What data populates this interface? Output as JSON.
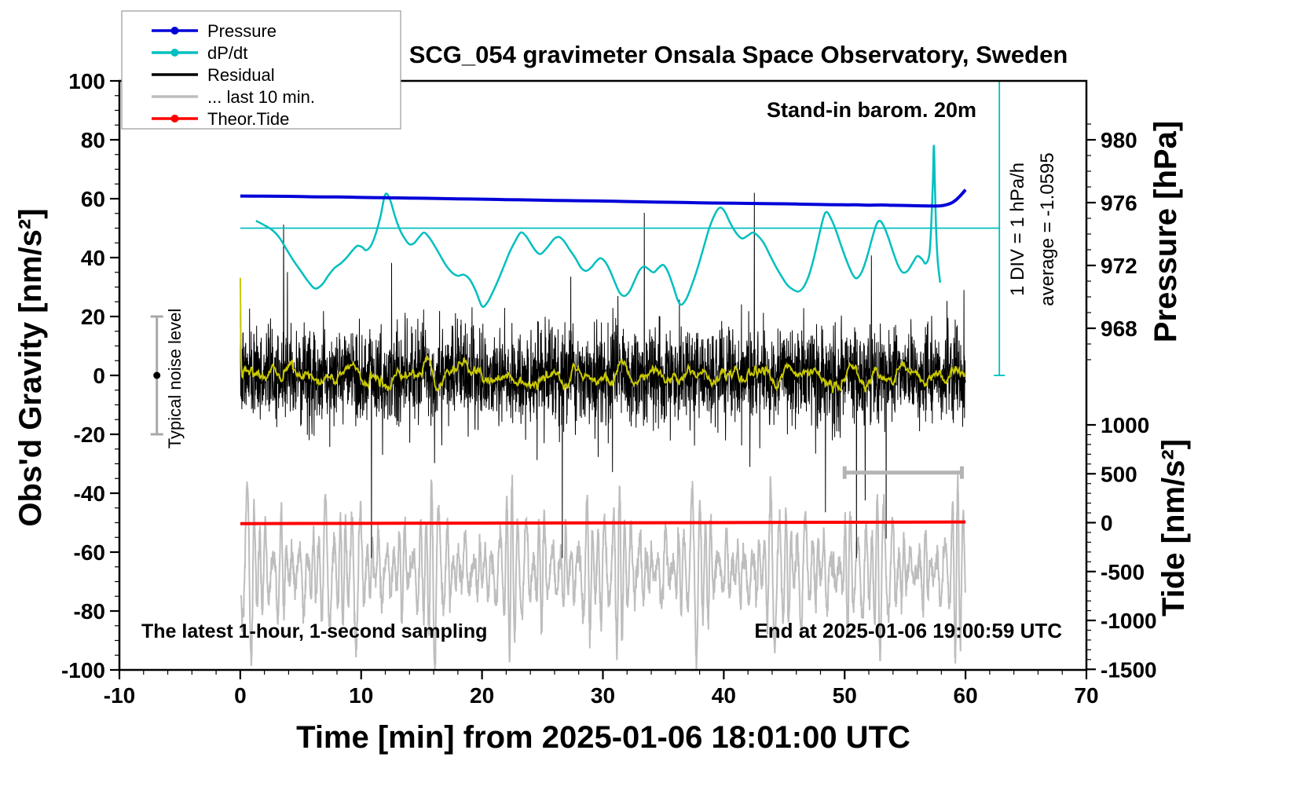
{
  "title": "SCG_054 gravimeter Onsala Space Observatory, Sweden",
  "axis": {
    "x_label": "Time [min] from 2025-01-06 18:01:00 UTC",
    "left_label": "Obs'd Gravity [nm/s²]",
    "pressure_label": "Pressure [hPa]",
    "tide_label": "Tide [nm/s²]"
  },
  "annotations": {
    "barometer": "Stand-in barom. 20m",
    "div_scale": "1 DIV = 1 hPa/h",
    "average": "average = -1.0595",
    "noise_level": "Typical noise level",
    "sampling": "The latest 1-hour, 1-second sampling",
    "end_time": "End at 2025-01-06 19:00:59 UTC"
  },
  "legend": {
    "items": [
      {
        "label": "Pressure",
        "color": "#0000d8",
        "marker": "dot"
      },
      {
        "label": "dP/dt",
        "color": "#00bfbf",
        "marker": "dot"
      },
      {
        "label": "Residual",
        "color": "#000000",
        "marker": "line"
      },
      {
        "label": "... last 10 min.",
        "color": "#bdbdbd",
        "marker": "line"
      },
      {
        "label": "Theor.Tide",
        "color": "#ff0000",
        "marker": "dot"
      }
    ]
  },
  "chart_data": {
    "type": "line",
    "x_range": [
      -10,
      70
    ],
    "gravity_range": [
      -100,
      100
    ],
    "x_ticks": [
      -10,
      0,
      10,
      20,
      30,
      40,
      50,
      60,
      70
    ],
    "x_minor_step": 2,
    "gravity_ticks": [
      -100,
      -80,
      -60,
      -40,
      -20,
      0,
      20,
      40,
      60,
      80,
      100
    ],
    "gravity_minor_step": 5,
    "pressure_ticks": [
      968,
      972,
      976,
      980
    ],
    "pressure_minor_step": 1,
    "pressure_minor_range": [
      966,
      981
    ],
    "tide_ticks": [
      -1500,
      -1000,
      -500,
      0,
      500,
      1000
    ],
    "tide_minor_step": 100,
    "pressure_map": {
      "gravity_at_980": 80,
      "gravity_units_per_hpa": 5.333
    },
    "tide_map": {
      "gravity_at_0": -50,
      "gravity_units_per_1000": 33.2
    },
    "series": {
      "pressure": {
        "axis": "pressure",
        "color": "#0000d8",
        "width": 4,
        "points": [
          [
            0,
            976.42
          ],
          [
            2,
            976.41
          ],
          [
            4,
            976.4
          ],
          [
            6,
            976.37
          ],
          [
            8,
            976.36
          ],
          [
            10,
            976.33
          ],
          [
            12,
            976.31
          ],
          [
            14,
            976.29
          ],
          [
            16,
            976.27
          ],
          [
            18,
            976.24
          ],
          [
            20,
            976.22
          ],
          [
            22,
            976.19
          ],
          [
            24,
            976.17
          ],
          [
            26,
            976.14
          ],
          [
            28,
            976.12
          ],
          [
            30,
            976.1
          ],
          [
            32,
            976.07
          ],
          [
            34,
            976.04
          ],
          [
            36,
            976.02
          ],
          [
            38,
            975.99
          ],
          [
            40,
            975.97
          ],
          [
            42,
            975.95
          ],
          [
            44,
            975.93
          ],
          [
            46,
            975.91
          ],
          [
            48,
            975.88
          ],
          [
            50,
            975.86
          ],
          [
            51,
            975.86
          ],
          [
            52,
            975.84
          ],
          [
            53,
            975.85
          ],
          [
            54,
            975.83
          ],
          [
            55,
            975.82
          ],
          [
            56,
            975.8
          ],
          [
            57,
            975.79
          ],
          [
            57.5,
            975.78
          ],
          [
            58,
            975.8
          ],
          [
            58.5,
            975.88
          ],
          [
            59,
            976.05
          ],
          [
            59.5,
            976.38
          ],
          [
            60,
            976.82
          ]
        ]
      },
      "dpdt": {
        "axis": "gravity",
        "color": "#00bfbf",
        "width": 2.5,
        "zero_gravity": 50,
        "points": [
          [
            1.3,
            52.5
          ],
          [
            2,
            51
          ],
          [
            2.6,
            49.5
          ],
          [
            3.2,
            47
          ],
          [
            3.8,
            43
          ],
          [
            4.4,
            39
          ],
          [
            5,
            35.5
          ],
          [
            5.6,
            32
          ],
          [
            6.2,
            29.5
          ],
          [
            6.8,
            31
          ],
          [
            7.3,
            34
          ],
          [
            7.8,
            36.5
          ],
          [
            8.3,
            38
          ],
          [
            8.8,
            40
          ],
          [
            9.3,
            42.5
          ],
          [
            9.7,
            44
          ],
          [
            10.1,
            43.5
          ],
          [
            10.4,
            42.5
          ],
          [
            10.8,
            44
          ],
          [
            11.2,
            48
          ],
          [
            11.6,
            54
          ],
          [
            12,
            61.5
          ],
          [
            12.4,
            59.5
          ],
          [
            12.8,
            54
          ],
          [
            13.2,
            49.5
          ],
          [
            13.6,
            46.5
          ],
          [
            14,
            44.5
          ],
          [
            14.4,
            45
          ],
          [
            14.8,
            47
          ],
          [
            15.2,
            48.5
          ],
          [
            15.6,
            47
          ],
          [
            16,
            44.5
          ],
          [
            16.5,
            41
          ],
          [
            17,
            37.5
          ],
          [
            17.5,
            35
          ],
          [
            18,
            33.8
          ],
          [
            18.5,
            34.2
          ],
          [
            19,
            32.5
          ],
          [
            19.5,
            28.5
          ],
          [
            20,
            23.5
          ],
          [
            20.4,
            24.5
          ],
          [
            20.8,
            27.5
          ],
          [
            21.3,
            32
          ],
          [
            21.8,
            37
          ],
          [
            22.3,
            42
          ],
          [
            22.8,
            46
          ],
          [
            23.2,
            48.5
          ],
          [
            23.6,
            47.5
          ],
          [
            24,
            45
          ],
          [
            24.4,
            42.5
          ],
          [
            24.8,
            41.2
          ],
          [
            25.2,
            42.5
          ],
          [
            25.6,
            44.5
          ],
          [
            26,
            46.5
          ],
          [
            26.4,
            47
          ],
          [
            26.8,
            45.5
          ],
          [
            27.2,
            43
          ],
          [
            27.7,
            40
          ],
          [
            28.2,
            36.5
          ],
          [
            28.6,
            35.5
          ],
          [
            29,
            36.5
          ],
          [
            29.4,
            38.5
          ],
          [
            29.8,
            39.8
          ],
          [
            30.2,
            38.5
          ],
          [
            30.6,
            35.5
          ],
          [
            31,
            31.5
          ],
          [
            31.4,
            28
          ],
          [
            31.8,
            27
          ],
          [
            32.2,
            28.5
          ],
          [
            32.6,
            32
          ],
          [
            33,
            35.5
          ],
          [
            33.4,
            37
          ],
          [
            33.8,
            36
          ],
          [
            34.2,
            35
          ],
          [
            34.6,
            36.5
          ],
          [
            35,
            37.5
          ],
          [
            35.4,
            35
          ],
          [
            35.8,
            30.5
          ],
          [
            36.2,
            25.5
          ],
          [
            36.5,
            24
          ],
          [
            36.9,
            26
          ],
          [
            37.3,
            30
          ],
          [
            37.8,
            36
          ],
          [
            38.3,
            43
          ],
          [
            38.8,
            50
          ],
          [
            39.3,
            55
          ],
          [
            39.7,
            57
          ],
          [
            40.1,
            55.5
          ],
          [
            40.5,
            52
          ],
          [
            41,
            48.5
          ],
          [
            41.5,
            46.5
          ],
          [
            42,
            47.5
          ],
          [
            42.4,
            48.5
          ],
          [
            42.8,
            47.5
          ],
          [
            43.3,
            45
          ],
          [
            43.8,
            41
          ],
          [
            44.3,
            37
          ],
          [
            44.8,
            33.5
          ],
          [
            45.3,
            30.5
          ],
          [
            45.8,
            29
          ],
          [
            46.2,
            28.5
          ],
          [
            46.6,
            30
          ],
          [
            47,
            33.5
          ],
          [
            47.4,
            39
          ],
          [
            47.8,
            46
          ],
          [
            48.2,
            53
          ],
          [
            48.5,
            55.5
          ],
          [
            48.9,
            53
          ],
          [
            49.3,
            49
          ],
          [
            49.8,
            43
          ],
          [
            50.3,
            37.5
          ],
          [
            50.7,
            34
          ],
          [
            51,
            33
          ],
          [
            51.4,
            35
          ],
          [
            51.8,
            39.5
          ],
          [
            52.2,
            45.5
          ],
          [
            52.6,
            51
          ],
          [
            52.9,
            52.5
          ],
          [
            53.2,
            51
          ],
          [
            53.6,
            47
          ],
          [
            54,
            42
          ],
          [
            54.4,
            37.5
          ],
          [
            54.8,
            35
          ],
          [
            55.2,
            35.5
          ],
          [
            55.6,
            38
          ],
          [
            56,
            40.5
          ],
          [
            56.4,
            39.5
          ],
          [
            56.7,
            38
          ],
          [
            57,
            41
          ],
          [
            57.15,
            50
          ],
          [
            57.3,
            66
          ],
          [
            57.38,
            78
          ],
          [
            57.46,
            66
          ],
          [
            57.56,
            50
          ],
          [
            57.7,
            39
          ],
          [
            57.9,
            31.5
          ]
        ]
      },
      "theor_tide": {
        "axis": "tide",
        "color": "#ff0000",
        "width": 4,
        "points": [
          [
            0,
            -10
          ],
          [
            10,
            -7
          ],
          [
            20,
            -5
          ],
          [
            30,
            -2
          ],
          [
            40,
            1
          ],
          [
            50,
            4
          ],
          [
            60,
            7
          ]
        ]
      },
      "residual": {
        "axis": "gravity",
        "color": "#000000",
        "width": 1,
        "generator": {
          "seed": 7,
          "points": 3600,
          "x_range": [
            0,
            60
          ],
          "std": 7.5,
          "spike_prob": 0.018,
          "spike_min": 1.8,
          "spike_max": 4.2,
          "clamp": 62
        }
      },
      "residual_smooth": {
        "axis": "gravity",
        "color": "#c8c800",
        "width": 2,
        "window": 45,
        "gain": 1.6
      },
      "last_10_min": {
        "axis": "gravity",
        "color": "#bdbdbd",
        "width": 2,
        "generator": {
          "seed": 23,
          "points": 3000,
          "x_range": [
            0.05,
            60
          ],
          "center": -66,
          "carrier_period": 0.55,
          "base_amp": 9,
          "mod_amps": [
            9,
            7,
            6
          ],
          "mod_periods": [
            7.3,
            3.1,
            1.27
          ],
          "jitter": 2,
          "clamp": [
            -100,
            -29
          ]
        }
      }
    },
    "markers": {
      "noise_errorbar": {
        "x": -6.9,
        "gravity_from": -20,
        "gravity_to": 20,
        "dot_gravity": 0
      },
      "scale_bar": {
        "gravity": -33,
        "x_from": 50,
        "x_to": 59.7
      },
      "dpdt_axis_bar": {
        "x": 62.8,
        "gravity_from": 0,
        "gravity_to": 100
      }
    }
  }
}
